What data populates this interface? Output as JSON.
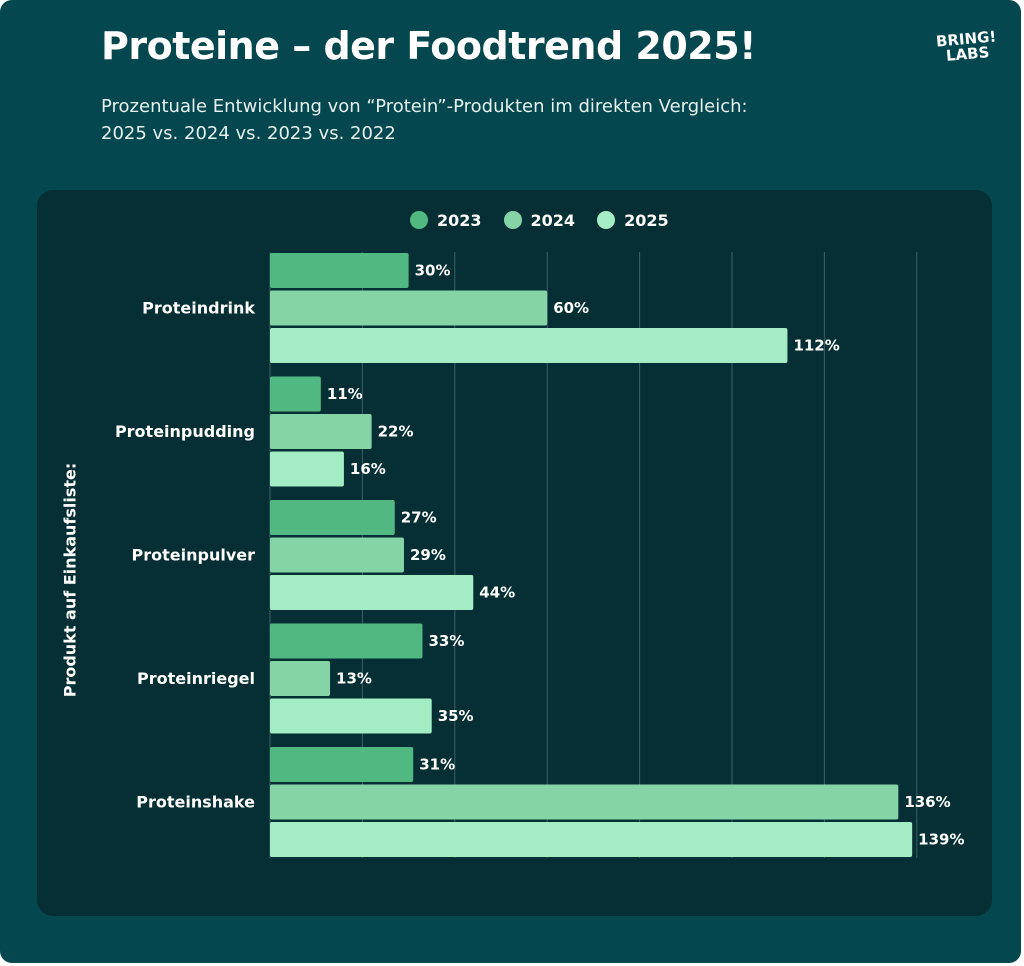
{
  "title": "Proteine – der Foodtrend 2025!",
  "subtitle_line1": "Prozentuale Entwicklung von “Protein”-Produkten im direkten Vergleich:",
  "subtitle_line2": "2025 vs. 2024 vs. 2023 vs. 2022",
  "logo": {
    "line1": "BRING!",
    "line2": "LABS"
  },
  "colors": {
    "background": "#04474f",
    "panel": "#052f35",
    "series_2023": "#52b881",
    "series_2024": "#84d4a6",
    "series_2025": "#a4ecc4",
    "text": "#ffffff"
  },
  "chart_data": {
    "type": "bar",
    "orientation": "horizontal",
    "title": "Proteine – der Foodtrend 2025!",
    "ylabel": "Produkt auf Einkaufsliste:",
    "xlabel": "",
    "xlim": [
      0,
      150
    ],
    "grid": true,
    "legend_position": "top",
    "value_suffix": "%",
    "categories": [
      "Proteindrink",
      "Proteinpudding",
      "Proteinpulver",
      "Proteinriegel",
      "Proteinshake"
    ],
    "series": [
      {
        "name": "2023",
        "color": "#52b881",
        "values": [
          30,
          11,
          27,
          33,
          31
        ]
      },
      {
        "name": "2024",
        "color": "#84d4a6",
        "values": [
          60,
          22,
          29,
          13,
          136
        ]
      },
      {
        "name": "2025",
        "color": "#a4ecc4",
        "values": [
          112,
          16,
          44,
          35,
          139
        ]
      }
    ]
  }
}
